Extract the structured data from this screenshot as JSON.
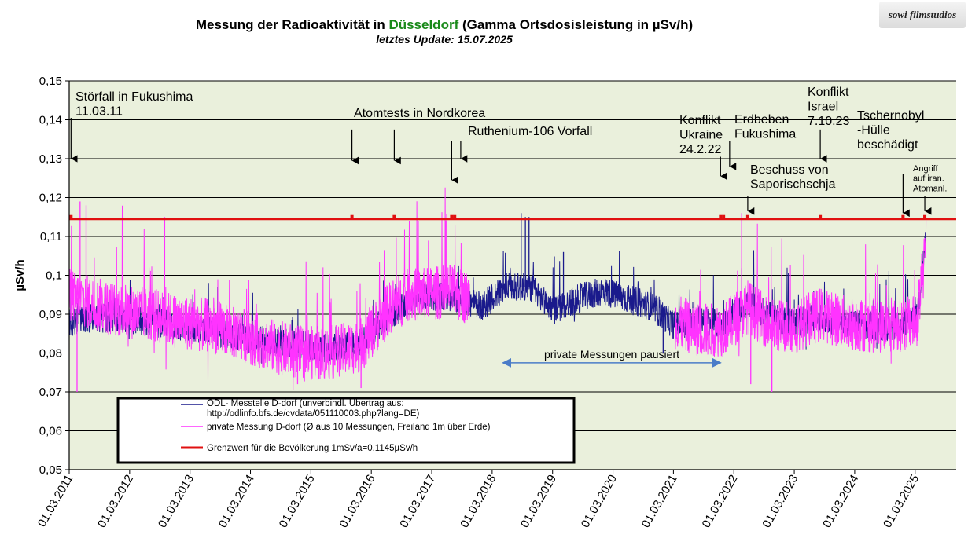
{
  "title": {
    "prefix": "Messung der Radioaktivität in ",
    "city": "Düsseldorf",
    "suffix": " (Gamma Ortsdosisleistung in µSv/h)"
  },
  "subtitle": "letztes Update: 15.07.2025",
  "logo_text": "sowi filmstudios",
  "colors": {
    "plot_bg": "#eaf0dc",
    "odl": "#1a1a8c",
    "private": "#ff33ff",
    "limit": "#e01010",
    "arrow": "#4a7cc8"
  },
  "chart_data": {
    "type": "line",
    "ylabel": "µSv/h",
    "ylim": [
      0.05,
      0.15
    ],
    "yticks": [
      0.05,
      0.06,
      0.07,
      0.08,
      0.09,
      0.1,
      0.11,
      0.12,
      0.13,
      0.14,
      0.15
    ],
    "ytick_labels": [
      "0,05",
      "0,06",
      "0,07",
      "0,08",
      "0,09",
      "0,1",
      "0,11",
      "0,12",
      "0,13",
      "0,14",
      "0,15"
    ],
    "xlim": [
      2011.17,
      2025.85
    ],
    "xticks": [
      2011.17,
      2012.17,
      2013.17,
      2014.17,
      2015.17,
      2016.17,
      2017.17,
      2018.17,
      2019.17,
      2020.17,
      2021.17,
      2022.17,
      2023.17,
      2024.17,
      2025.17
    ],
    "xtick_labels": [
      "01.03.2011",
      "01.03.2012",
      "01.03.2013",
      "01.03.2014",
      "01.03.2015",
      "01.03.2016",
      "01.03.2017",
      "01.03.2018",
      "01.03.2019",
      "01.03.2020",
      "01.03.2021",
      "01.03.2022",
      "01.03.2023",
      "01.03.2024",
      "01.03.2025"
    ],
    "grid": true,
    "series": [
      {
        "name": "ODL- Messtelle D-dorf (unverbindl. Übertrag aus: http://odlinfo.bfs.de/cvdata/051110003.php?lang=DE)",
        "color": "#1a1a8c",
        "x": [
          2011.17,
          2011.5,
          2012.0,
          2012.5,
          2013.0,
          2013.5,
          2014.0,
          2014.5,
          2015.0,
          2015.5,
          2016.0,
          2016.5,
          2017.0,
          2017.5,
          2018.0,
          2018.4,
          2018.8,
          2019.2,
          2019.6,
          2020.0,
          2020.4,
          2020.8,
          2021.2,
          2021.6,
          2022.0,
          2022.4,
          2022.8,
          2023.2,
          2023.6,
          2024.0,
          2024.4,
          2024.8,
          2025.2,
          2025.35
        ],
        "y": [
          0.088,
          0.089,
          0.089,
          0.088,
          0.087,
          0.086,
          0.084,
          0.083,
          0.082,
          0.081,
          0.083,
          0.09,
          0.095,
          0.094,
          0.092,
          0.097,
          0.097,
          0.091,
          0.094,
          0.096,
          0.094,
          0.092,
          0.087,
          0.089,
          0.087,
          0.093,
          0.089,
          0.088,
          0.089,
          0.088,
          0.087,
          0.087,
          0.089,
          0.11
        ],
        "spikes": [
          {
            "x": 2018.65,
            "y": 0.116
          },
          {
            "x": 2018.72,
            "y": 0.115
          },
          {
            "x": 2018.78,
            "y": 0.115
          },
          {
            "x": 2019.35,
            "y": 0.106
          },
          {
            "x": 2021.0,
            "y": 0.08
          }
        ]
      },
      {
        "name": "private Messung D-dorf (Ø aus 10 Messungen, Freiland 1m über Erde)",
        "color": "#ff33ff",
        "x": [
          2011.17,
          2011.5,
          2012.0,
          2012.5,
          2013.0,
          2013.5,
          2014.0,
          2014.5,
          2015.0,
          2015.5,
          2016.0,
          2016.5,
          2016.8,
          2017.0,
          2017.5,
          2017.8,
          2018.0,
          2021.0,
          2021.2,
          2021.6,
          2022.0,
          2022.4,
          2022.8,
          2023.2,
          2023.6,
          2024.0,
          2024.4,
          2024.8,
          2025.2,
          2025.35
        ],
        "y": [
          0.095,
          0.093,
          0.091,
          0.09,
          0.088,
          0.087,
          0.085,
          0.082,
          0.08,
          0.08,
          0.082,
          0.092,
          0.095,
          0.095,
          0.096,
          0.094,
          null,
          null,
          0.088,
          0.086,
          0.086,
          0.092,
          0.087,
          0.087,
          0.09,
          0.088,
          0.087,
          0.087,
          0.088,
          0.11
        ],
        "spikes": [
          {
            "x": 2011.3,
            "y": 0.07
          },
          {
            "x": 2011.35,
            "y": 0.119
          },
          {
            "x": 2011.45,
            "y": 0.118
          },
          {
            "x": 2012.05,
            "y": 0.115
          },
          {
            "x": 2012.75,
            "y": 0.115
          },
          {
            "x": 2014.95,
            "y": 0.072
          },
          {
            "x": 2016.0,
            "y": 0.071
          },
          {
            "x": 2017.4,
            "y": 0.114
          },
          {
            "x": 2022.3,
            "y": 0.116
          },
          {
            "x": 2022.45,
            "y": 0.072
          },
          {
            "x": 2022.8,
            "y": 0.07
          }
        ]
      },
      {
        "name": "Grenzwert für die Bevölkerung 1mSv/a=0,1145µSv/h",
        "color": "#e01010",
        "x": [
          2011.17,
          2025.85
        ],
        "y": [
          0.1145,
          0.1145
        ]
      }
    ],
    "event_dots_x": [
      2011.2,
      2015.85,
      2016.55,
      2017.5,
      2017.55,
      2021.95,
      2022.0,
      2022.4,
      2023.6,
      2024.97,
      2025.33
    ],
    "annotations": [
      {
        "lines": [
          "Störfall in Fukushima",
          "11.03.11"
        ],
        "arrow_x": 2011.2,
        "arrow_y_top": 0.1405,
        "arrow_y_bottom": 0.13
      },
      {
        "lines": [
          "Atomtests in Nordkorea"
        ],
        "arrow_x": 2015.85,
        "arrow_y_top": 0.1375,
        "arrow_y_bottom": 0.1295
      },
      {
        "lines": [
          ""
        ],
        "arrow_x": 2016.55,
        "arrow_y_top": 0.1375,
        "arrow_y_bottom": 0.1295
      },
      {
        "lines": [
          "Ruthenium-106 Vorfall"
        ],
        "arrow_x": 2017.65,
        "arrow_y_top": 0.1345,
        "arrow_y_bottom": 0.13
      },
      {
        "lines": [
          ""
        ],
        "arrow_x": 2017.5,
        "arrow_y_top": 0.1345,
        "arrow_y_bottom": 0.1245
      },
      {
        "lines": [
          "Konflikt",
          "Ukraine",
          "24.2.22"
        ],
        "arrow_x": 2021.95,
        "arrow_y_top": 0.1305,
        "arrow_y_bottom": 0.1255
      },
      {
        "lines": [
          "Erdbeben",
          "Fukushima"
        ],
        "arrow_x": 2022.1,
        "arrow_y_top": 0.1345,
        "arrow_y_bottom": 0.128
      },
      {
        "lines": [
          "Beschuss von",
          "Saporischschja"
        ],
        "arrow_x": 2022.4,
        "arrow_y_top": 0.1205,
        "arrow_y_bottom": 0.1165
      },
      {
        "lines": [
          "Konflikt",
          "Israel",
          "7.10.23"
        ],
        "arrow_x": 2023.6,
        "arrow_y_top": 0.1375,
        "arrow_y_bottom": 0.13
      },
      {
        "lines": [
          "Tschernobyl",
          "-Hülle",
          "beschädigt"
        ],
        "arrow_x": 2024.97,
        "arrow_y_top": 0.126,
        "arrow_y_bottom": 0.116
      },
      {
        "lines": [
          "Angriff",
          "auf iran.",
          "Atomanl."
        ],
        "arrow_x": 2025.33,
        "arrow_y_top": 0.1205,
        "arrow_y_bottom": 0.1165
      }
    ],
    "range_annotation": {
      "label": "private Messungen pausiert",
      "x_start": 2018.35,
      "x_end": 2021.95,
      "y": 0.0775
    }
  }
}
